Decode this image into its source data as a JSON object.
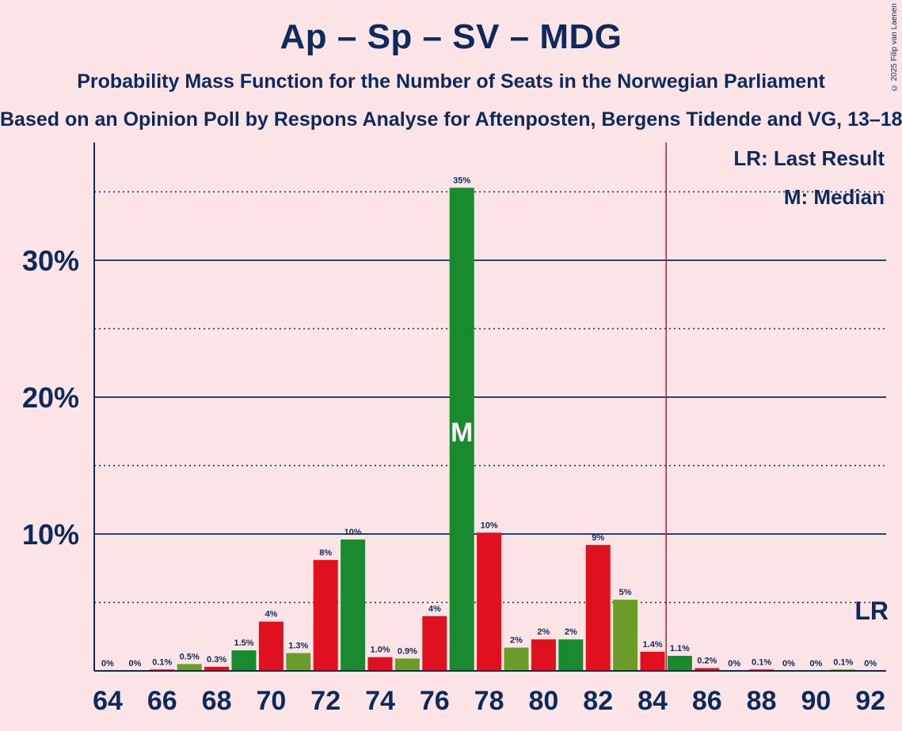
{
  "title": "Ap – Sp – SV – MDG",
  "subtitle": "Probability Mass Function for the Number of Seats in the Norwegian Parliament",
  "subtitle2": "Based on an Opinion Poll by Respons Analyse for Aftenposten, Bergens Tidende and VG, 13–18 August 2025",
  "copyright": "© 2025 Filip van Laenen",
  "legend": {
    "last_result": "LR: Last Result",
    "median": "M: Median"
  },
  "markers": {
    "median_label": "M",
    "lr_label": "LR",
    "median_seat": 77,
    "last_result_seat": 84.5
  },
  "colors": {
    "green": "#1a8a2e",
    "red": "#e0101e",
    "olive": "#6b9c2a",
    "background": "#fde4e6",
    "text": "#0d2a5c",
    "lr_line": "#e0101e"
  },
  "chart_data": {
    "type": "bar",
    "x": [
      64,
      65,
      66,
      67,
      68,
      69,
      70,
      71,
      72,
      73,
      74,
      75,
      76,
      77,
      78,
      79,
      80,
      81,
      82,
      83,
      84,
      85,
      86,
      87,
      88,
      89,
      90,
      91,
      92
    ],
    "values": [
      0,
      0,
      0.1,
      0.5,
      0.3,
      1.5,
      3.6,
      1.3,
      8.1,
      9.6,
      1.0,
      0.9,
      4.0,
      35.3,
      10.1,
      1.7,
      2.3,
      2.3,
      9.2,
      5.2,
      1.4,
      1.1,
      0.2,
      0,
      0.1,
      0,
      0,
      0.1,
      0
    ],
    "labels": [
      "0%",
      "0%",
      "0.1%",
      "0.5%",
      "0.3%",
      "1.5%",
      "4%",
      "1.3%",
      "8%",
      "10%",
      "1.0%",
      "0.9%",
      "4%",
      "35%",
      "10%",
      "2%",
      "2%",
      "2%",
      "9%",
      "5%",
      "1.4%",
      "1.1%",
      "0.2%",
      "0%",
      "0.1%",
      "0%",
      "0%",
      "0.1%",
      "0%"
    ],
    "bar_colors": [
      "red",
      "red",
      "red",
      "olive",
      "red",
      "green",
      "red",
      "olive",
      "red",
      "green",
      "red",
      "olive",
      "red",
      "green",
      "red",
      "olive",
      "red",
      "green",
      "red",
      "olive",
      "red",
      "green",
      "red",
      "olive",
      "red",
      "green",
      "red",
      "olive",
      "red"
    ],
    "x_ticks": [
      "64",
      "66",
      "68",
      "70",
      "72",
      "74",
      "76",
      "78",
      "80",
      "82",
      "84",
      "86",
      "88",
      "90",
      "92"
    ],
    "y_ticks": [
      "10%",
      "20%",
      "30%"
    ],
    "y_tick_values": [
      10,
      20,
      30
    ],
    "y_dotted_values": [
      5,
      15,
      25,
      35
    ],
    "ylim": [
      0,
      38.5
    ],
    "grid": true,
    "legend_position": "top-right"
  }
}
